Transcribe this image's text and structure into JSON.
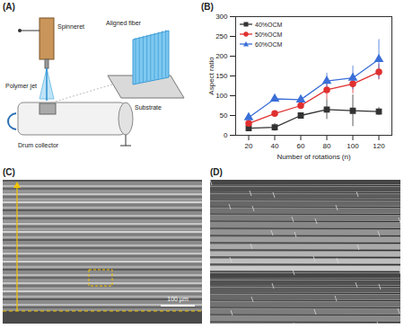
{
  "figure": {
    "A": {
      "label": "(A)",
      "spinneret": "Spinneret",
      "jet": "Polymer jet",
      "collector": "Drum collector",
      "fiber": "Aligned fiber",
      "substrate": "Substrate"
    },
    "C": {
      "label": "(C)",
      "scale_bar": "100 µm"
    },
    "D": {
      "label": "(D)"
    }
  },
  "chart_data": {
    "label": "(B)",
    "type": "line",
    "x_label": "Number of rotations (n)",
    "y_label": "Aspect ratio",
    "x": [
      20,
      40,
      60,
      80,
      100,
      120
    ],
    "xlim": [
      10,
      130
    ],
    "xticks": [
      20,
      40,
      60,
      80,
      100,
      120
    ],
    "ylim": [
      0,
      300
    ],
    "yticks": [
      0,
      50,
      100,
      150,
      200,
      250,
      300
    ],
    "legend": "top-left",
    "series": [
      {
        "name": "40%OCM",
        "color": "#333333",
        "marker": "square",
        "values": [
          18,
          20,
          50,
          65,
          62,
          60
        ],
        "errors": [
          5,
          10,
          5,
          25,
          40,
          10
        ]
      },
      {
        "name": "50%OCM",
        "color": "#e03030",
        "marker": "circle",
        "values": [
          30,
          55,
          75,
          115,
          130,
          160
        ],
        "errors": [
          10,
          5,
          8,
          25,
          25,
          20
        ]
      },
      {
        "name": "60%OCM",
        "color": "#3b6fd8",
        "marker": "triangle",
        "values": [
          45,
          92,
          90,
          137,
          145,
          192
        ],
        "errors": [
          8,
          5,
          5,
          20,
          30,
          50
        ]
      }
    ]
  }
}
